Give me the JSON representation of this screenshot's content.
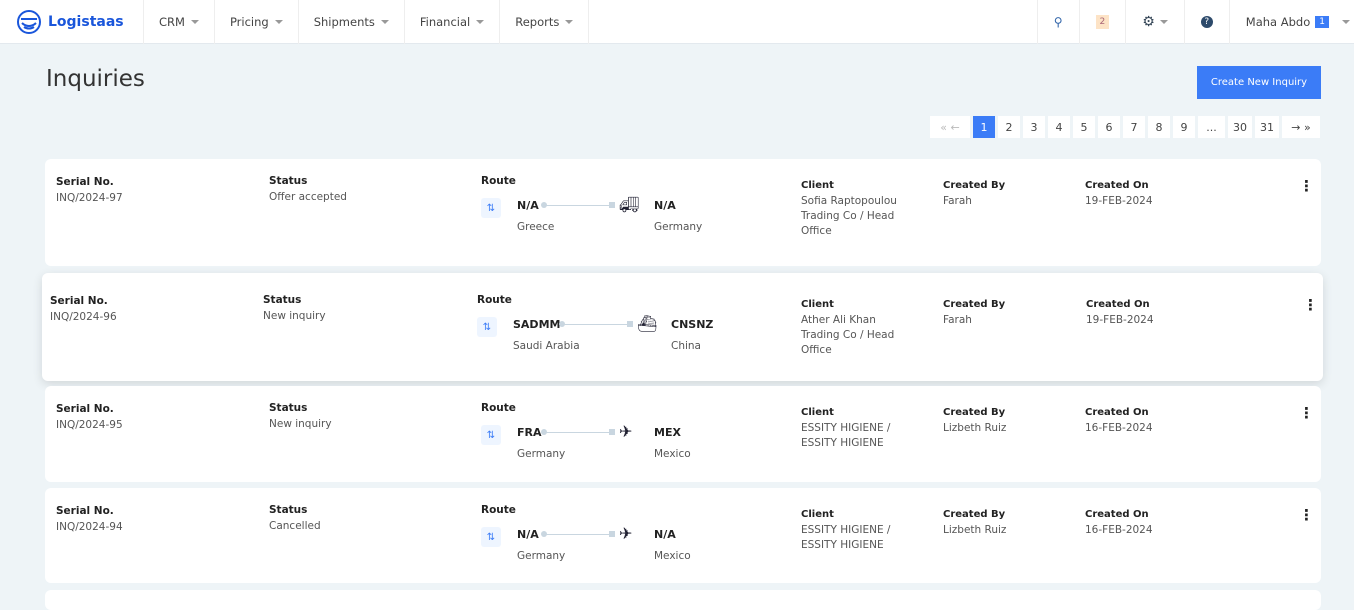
{
  "nav": {
    "brand": "Logistaas",
    "menu": [
      "CRM",
      "Pricing",
      "Shipments",
      "Financial",
      "Reports"
    ],
    "notifications": "2",
    "user": "Maha Abdo",
    "user_badge": "1"
  },
  "page": {
    "title": "Inquiries",
    "create_label": "Create New Inquiry"
  },
  "pager": {
    "prev": "« ←",
    "pages": [
      "1",
      "2",
      "3",
      "4",
      "5",
      "6",
      "7",
      "8",
      "9",
      "...",
      "30",
      "31"
    ],
    "next": "→ »",
    "active": "1"
  },
  "labels": {
    "serial": "Serial No.",
    "status": "Status",
    "route": "Route",
    "client": "Client",
    "created_by": "Created By",
    "created_on": "Created On"
  },
  "inquiries": [
    {
      "serial": "INQ/2024-97",
      "status": "Offer accepted",
      "from_code": "N/A",
      "from_country": "Greece",
      "to_code": "N/A",
      "to_country": "Germany",
      "mode": "truck",
      "client": "Sofia Raptopoulou Trading Co / Head Office",
      "created_by": "Farah",
      "created_on": "19-FEB-2024"
    },
    {
      "serial": "INQ/2024-96",
      "status": "New inquiry",
      "from_code": "SADMM",
      "from_country": "Saudi Arabia",
      "to_code": "CNSNZ",
      "to_country": "China",
      "mode": "ship",
      "client": "Ather Ali Khan Trading Co / Head Office",
      "created_by": "Farah",
      "created_on": "19-FEB-2024"
    },
    {
      "serial": "INQ/2024-95",
      "status": "New inquiry",
      "from_code": "FRA",
      "from_country": "Germany",
      "to_code": "MEX",
      "to_country": "Mexico",
      "mode": "plane",
      "client": "ESSITY HIGIENE / ESSITY HIGIENE",
      "created_by": "Lizbeth Ruiz",
      "created_on": "16-FEB-2024"
    },
    {
      "serial": "INQ/2024-94",
      "status": "Cancelled",
      "from_code": "N/A",
      "from_country": "Germany",
      "to_code": "N/A",
      "to_country": "Mexico",
      "mode": "plane",
      "client": "ESSITY HIGIENE / ESSITY HIGIENE",
      "created_by": "Lizbeth Ruiz",
      "created_on": "16-FEB-2024"
    }
  ]
}
